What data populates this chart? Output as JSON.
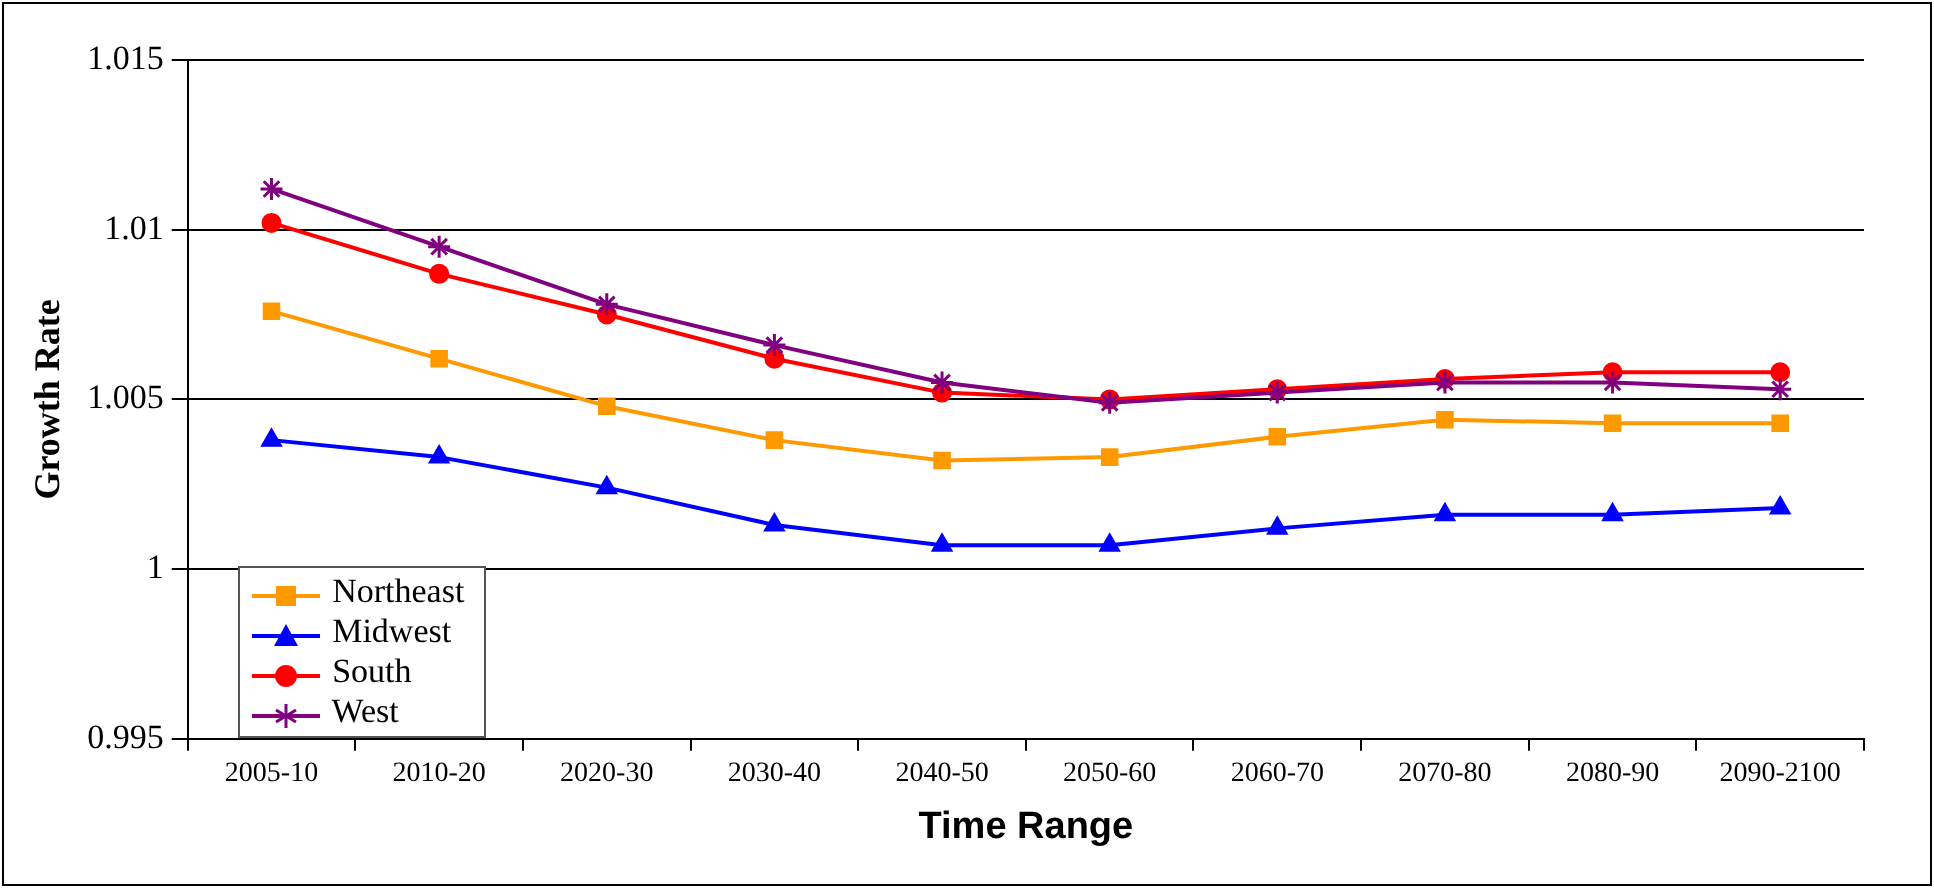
{
  "chart_data": {
    "type": "line",
    "xlabel": "Time Range",
    "ylabel": "Growth Rate",
    "categories": [
      "2005-10",
      "2010-20",
      "2020-30",
      "2030-40",
      "2040-50",
      "2050-60",
      "2060-70",
      "2070-80",
      "2080-90",
      "2090-2100"
    ],
    "series": [
      {
        "name": "Northeast",
        "color": "#ff9900",
        "marker": "square",
        "values": [
          1.0076,
          1.0062,
          1.0048,
          1.0038,
          1.0032,
          1.0033,
          1.0039,
          1.0044,
          1.0043,
          1.0043
        ]
      },
      {
        "name": "Midwest",
        "color": "#0000ff",
        "marker": "triangle",
        "values": [
          1.0038,
          1.0033,
          1.0024,
          1.0013,
          1.0007,
          1.0007,
          1.0012,
          1.0016,
          1.0016,
          1.0018
        ]
      },
      {
        "name": "South",
        "color": "#ff0000",
        "marker": "circle",
        "values": [
          1.0102,
          1.0087,
          1.0075,
          1.0062,
          1.0052,
          1.005,
          1.0053,
          1.0056,
          1.0058,
          1.0058
        ]
      },
      {
        "name": "West",
        "color": "#800080",
        "marker": "cross",
        "values": [
          1.0112,
          1.0095,
          1.0078,
          1.0066,
          1.0055,
          1.0049,
          1.0052,
          1.0055,
          1.0055,
          1.0053
        ]
      }
    ],
    "ylim": [
      0.995,
      1.015
    ],
    "yticks": [
      0.995,
      1,
      1.005,
      1.01,
      1.015
    ],
    "grid": "y",
    "legend": "bottom left",
    "line_style": "solid"
  }
}
